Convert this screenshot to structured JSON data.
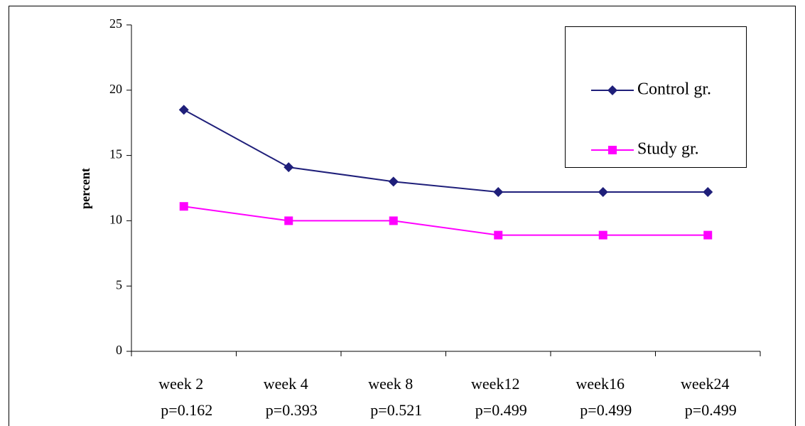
{
  "chart_data": {
    "type": "line",
    "y_label": "percent",
    "categories": [
      "week 2",
      "week 4",
      "week 8",
      "week12",
      "week16",
      "week24"
    ],
    "category_notes": [
      "p=0.162",
      "p=0.393",
      "p=0.521",
      "p=0.499",
      "p=0.499",
      "p=0.499"
    ],
    "series": [
      {
        "name": "Control gr.",
        "color": "#1f1f7a",
        "marker": "diamond",
        "values": [
          18.5,
          14.1,
          13.0,
          12.2,
          12.2,
          12.2
        ]
      },
      {
        "name": "Study gr.",
        "color": "#ff00ff",
        "marker": "square",
        "values": [
          11.1,
          10.0,
          10.0,
          8.9,
          8.9,
          8.9
        ]
      }
    ],
    "ylim": [
      0,
      25
    ],
    "yticks": [
      0,
      5,
      10,
      15,
      20,
      25
    ],
    "grid": false,
    "legend": "upper right"
  }
}
